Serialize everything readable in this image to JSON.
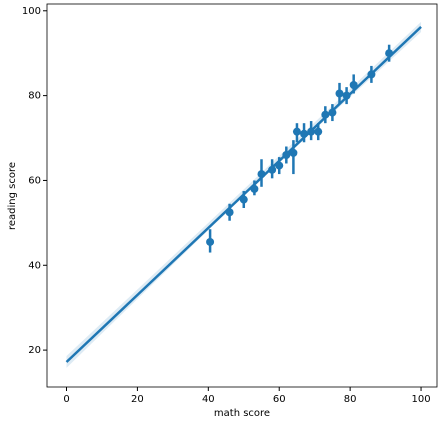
{
  "chart_data": {
    "type": "regplot",
    "x_label": "math score",
    "y_label": "reading score",
    "color": "#1f77b4",
    "x": [
      40.5,
      46,
      50,
      53,
      55,
      58,
      60,
      62,
      64,
      65,
      67,
      69,
      71,
      73,
      75,
      77,
      79,
      81,
      86,
      91
    ],
    "y": [
      45.5,
      52.5,
      55.5,
      58,
      61.5,
      62.5,
      63.5,
      66,
      66.5,
      71.5,
      71,
      71.5,
      71.5,
      75.5,
      76,
      80.5,
      80,
      82.5,
      85,
      90
    ],
    "ci_low": [
      43,
      50.5,
      53.5,
      56.5,
      58.5,
      60.5,
      61.5,
      64,
      61.5,
      69,
      69,
      69.5,
      69.5,
      73.5,
      74,
      78,
      78,
      80.5,
      83,
      88
    ],
    "ci_high": [
      48.5,
      54.5,
      57.5,
      60,
      65,
      65,
      65.5,
      68,
      69.5,
      73.5,
      73.5,
      74,
      73.5,
      77.5,
      78,
      83,
      82,
      85,
      87,
      92
    ],
    "fit": {
      "x": [
        0,
        100
      ],
      "y": [
        17.2,
        96.2
      ]
    },
    "band": {
      "x": [
        0,
        40,
        60,
        100
      ],
      "lower": [
        15.8,
        48.3,
        64.3,
        95.0
      ],
      "upper": [
        18.6,
        50.0,
        65.8,
        97.4
      ]
    },
    "xlim": [
      -5.5,
      104.5
    ],
    "ylim": [
      11.3,
      101.6
    ],
    "xticks": [
      0,
      20,
      40,
      60,
      80,
      100
    ],
    "yticks": [
      20,
      40,
      60,
      80,
      100
    ]
  }
}
